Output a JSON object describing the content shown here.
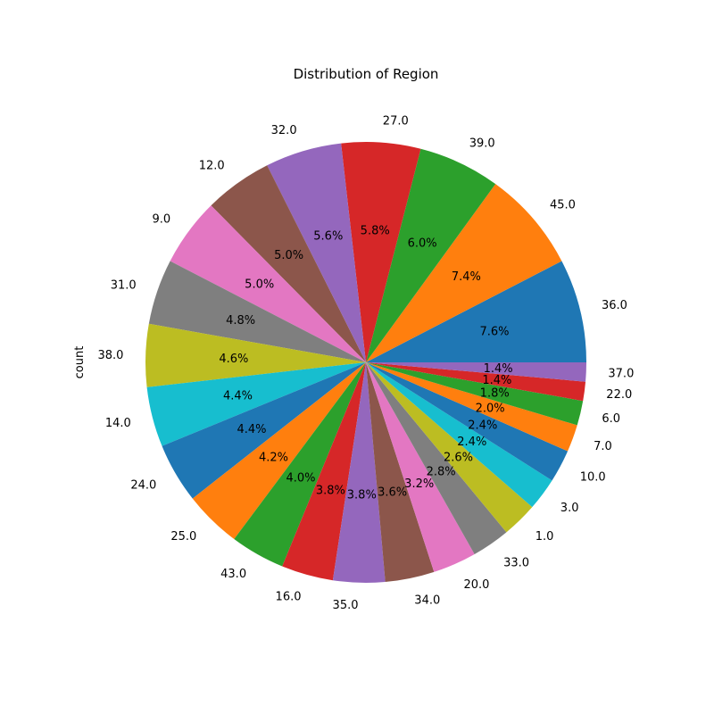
{
  "chart_data": {
    "type": "pie",
    "title": "Distribution of Region",
    "ylabel": "count",
    "start_angle_deg": 0,
    "direction": "counterclockwise",
    "slices": [
      {
        "label": "36.0",
        "value": 7.6,
        "pct_label": "7.6%",
        "color": "#1f77b4"
      },
      {
        "label": "45.0",
        "value": 7.4,
        "pct_label": "7.4%",
        "color": "#ff7f0e"
      },
      {
        "label": "39.0",
        "value": 6.0,
        "pct_label": "6.0%",
        "color": "#2ca02c"
      },
      {
        "label": "27.0",
        "value": 5.8,
        "pct_label": "5.8%",
        "color": "#d62728"
      },
      {
        "label": "32.0",
        "value": 5.6,
        "pct_label": "5.6%",
        "color": "#9467bd"
      },
      {
        "label": "12.0",
        "value": 5.0,
        "pct_label": "5.0%",
        "color": "#8c564b"
      },
      {
        "label": "9.0",
        "value": 5.0,
        "pct_label": "5.0%",
        "color": "#e377c2"
      },
      {
        "label": "31.0",
        "value": 4.8,
        "pct_label": "4.8%",
        "color": "#7f7f7f"
      },
      {
        "label": "38.0",
        "value": 4.6,
        "pct_label": "4.6%",
        "color": "#bcbd22"
      },
      {
        "label": "14.0",
        "value": 4.4,
        "pct_label": "4.4%",
        "color": "#17becf"
      },
      {
        "label": "24.0",
        "value": 4.4,
        "pct_label": "4.4%",
        "color": "#1f77b4"
      },
      {
        "label": "25.0",
        "value": 4.2,
        "pct_label": "4.2%",
        "color": "#ff7f0e"
      },
      {
        "label": "43.0",
        "value": 4.0,
        "pct_label": "4.0%",
        "color": "#2ca02c"
      },
      {
        "label": "16.0",
        "value": 3.8,
        "pct_label": "3.8%",
        "color": "#d62728"
      },
      {
        "label": "35.0",
        "value": 3.8,
        "pct_label": "3.8%",
        "color": "#9467bd"
      },
      {
        "label": "34.0",
        "value": 3.6,
        "pct_label": "3.6%",
        "color": "#8c564b"
      },
      {
        "label": "20.0",
        "value": 3.2,
        "pct_label": "3.2%",
        "color": "#e377c2"
      },
      {
        "label": "33.0",
        "value": 2.8,
        "pct_label": "2.8%",
        "color": "#7f7f7f"
      },
      {
        "label": "1.0",
        "value": 2.6,
        "pct_label": "2.6%",
        "color": "#bcbd22"
      },
      {
        "label": "3.0",
        "value": 2.4,
        "pct_label": "2.4%",
        "color": "#17becf"
      },
      {
        "label": "10.0",
        "value": 2.4,
        "pct_label": "2.4%",
        "color": "#1f77b4"
      },
      {
        "label": "7.0",
        "value": 2.0,
        "pct_label": "2.0%",
        "color": "#ff7f0e"
      },
      {
        "label": "6.0",
        "value": 1.8,
        "pct_label": "1.8%",
        "color": "#2ca02c"
      },
      {
        "label": "22.0",
        "value": 1.4,
        "pct_label": "1.4%",
        "color": "#d62728"
      },
      {
        "label": "37.0",
        "value": 1.4,
        "pct_label": "1.4%",
        "color": "#9467bd"
      }
    ]
  }
}
